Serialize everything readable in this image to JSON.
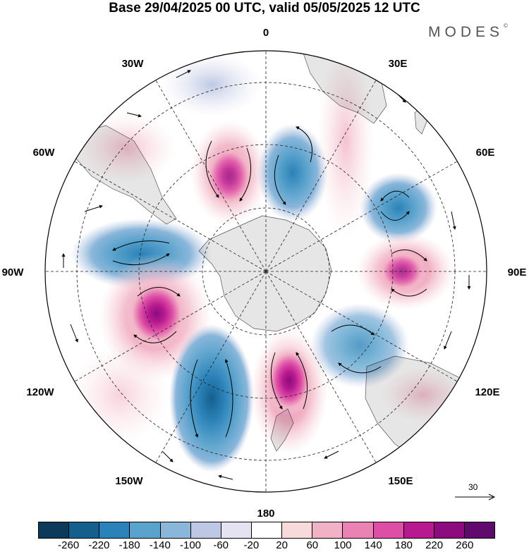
{
  "title": "Base 29/04/2025 00 UTC, valid 05/05/2025 12 UTC",
  "brand": {
    "name": "MODES",
    "mark": "©"
  },
  "longitude_labels": {
    "top": "0",
    "top_right": "30E",
    "right_upper": "60E",
    "right": "90E",
    "right_lower": "120E",
    "bottom_right": "150E",
    "bottom": "180",
    "bottom_left": "150W",
    "left_lower": "120W",
    "left": "90W",
    "left_upper": "60W",
    "top_left": "30W"
  },
  "reference_vector": {
    "label": "30"
  },
  "colorbar": {
    "ticks": [
      "-260",
      "-220",
      "-180",
      "-140",
      "-100",
      "-60",
      "-20",
      "20",
      "60",
      "100",
      "140",
      "180",
      "220",
      "260"
    ],
    "colors": [
      "#0c3a5a",
      "#155f8f",
      "#2b82b8",
      "#5aa3cd",
      "#8ab6da",
      "#bcc8e4",
      "#e4e3f1",
      "#ffffff",
      "#f8d9dc",
      "#f2b2c6",
      "#eb82b5",
      "#de4ea6",
      "#b7198f",
      "#8c0b7f",
      "#5f0a6c"
    ]
  },
  "map": {
    "projection": "south polar stereographic",
    "land_color": "#e6e6e6",
    "grid": true
  }
}
